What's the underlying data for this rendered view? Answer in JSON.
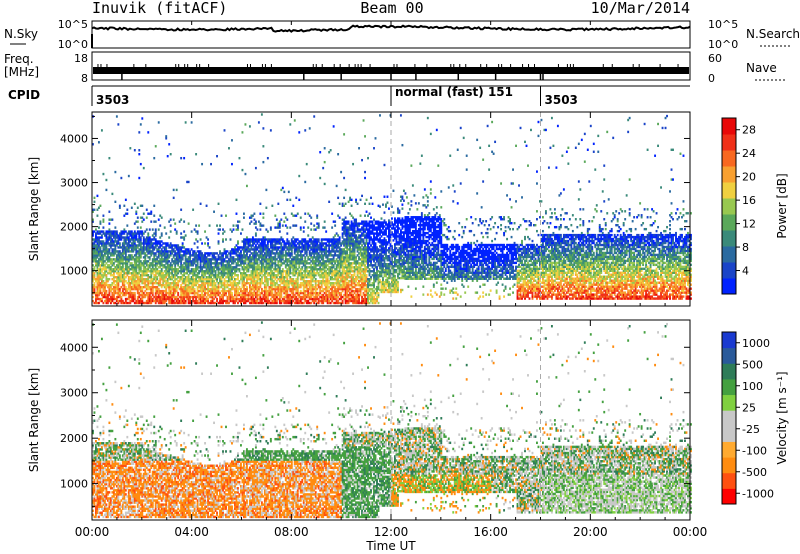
{
  "header": {
    "station": "Inuvik (fitACF)",
    "beam": "Beam 00",
    "date": "10/Mar/2014"
  },
  "status_panel": {
    "nsky_label": "N.Sky",
    "nsky_ticks": [
      "10^5",
      "10^0"
    ],
    "nsearch_label": "N.Search",
    "nsearch_ticks": [
      "10^5",
      "10^0"
    ],
    "freq_label": "Freq.",
    "freq_unit": "[MHz]",
    "freq_ticks": [
      "18",
      "8"
    ],
    "nave_label": "Nave",
    "nave_ticks": [
      "60",
      "0"
    ],
    "cpid_label": "CPID",
    "cpid_entries": [
      {
        "text": "3503",
        "start_hour": 0.0
      },
      {
        "text": "normal (fast)  151",
        "start_hour": 12.0
      },
      {
        "text": "3503",
        "start_hour": 18.0
      }
    ]
  },
  "colors": {
    "power_scale": [
      "#0022ff",
      "#1a44c8",
      "#2a6aa0",
      "#3a8a7a",
      "#5aa85a",
      "#98c850",
      "#f0d040",
      "#f8a030",
      "#f86820",
      "#f03018",
      "#e80808"
    ],
    "velocity_scale": [
      "#ff0000",
      "#ff5010",
      "#ff8c10",
      "#ffaa30",
      "#c8c8c8",
      "#c8c8c8",
      "#80d040",
      "#44a040",
      "#2e7c58",
      "#2a5a9a",
      "#1a3ad0"
    ],
    "grid_dash": "#aaaaaa"
  },
  "chart_data": [
    {
      "type": "heatmap",
      "title": "",
      "xlabel": "Time UT",
      "ylabel": "Slant Range [km]",
      "xlim": [
        0,
        24
      ],
      "ylim": [
        200,
        4600
      ],
      "x_ticks": [
        "00:00",
        "04:00",
        "08:00",
        "12:00",
        "16:00",
        "20:00",
        "00:00"
      ],
      "y_ticks": [
        "1000",
        "2000",
        "3000",
        "4000"
      ],
      "colorbar_label": "Power [dB]",
      "colorbar_ticks": [
        "4",
        "8",
        "12",
        "16",
        "20",
        "24",
        "28"
      ],
      "colorbar_range": [
        0,
        30
      ],
      "dashed_times": [
        12,
        18
      ]
    },
    {
      "type": "heatmap",
      "title": "",
      "xlabel": "Time UT",
      "ylabel": "Slant Range [km]",
      "xlim": [
        0,
        24
      ],
      "ylim": [
        200,
        4600
      ],
      "x_ticks": [
        "00:00",
        "04:00",
        "08:00",
        "12:00",
        "16:00",
        "20:00",
        "00:00"
      ],
      "y_ticks": [
        "1000",
        "2000",
        "3000",
        "4000"
      ],
      "colorbar_label": "Velocity [m s⁻¹]",
      "colorbar_ticks": [
        "1000",
        "500",
        "100",
        "25",
        "-25",
        "-100",
        "-500",
        "-1000"
      ],
      "dashed_times": [
        12,
        18
      ]
    }
  ]
}
